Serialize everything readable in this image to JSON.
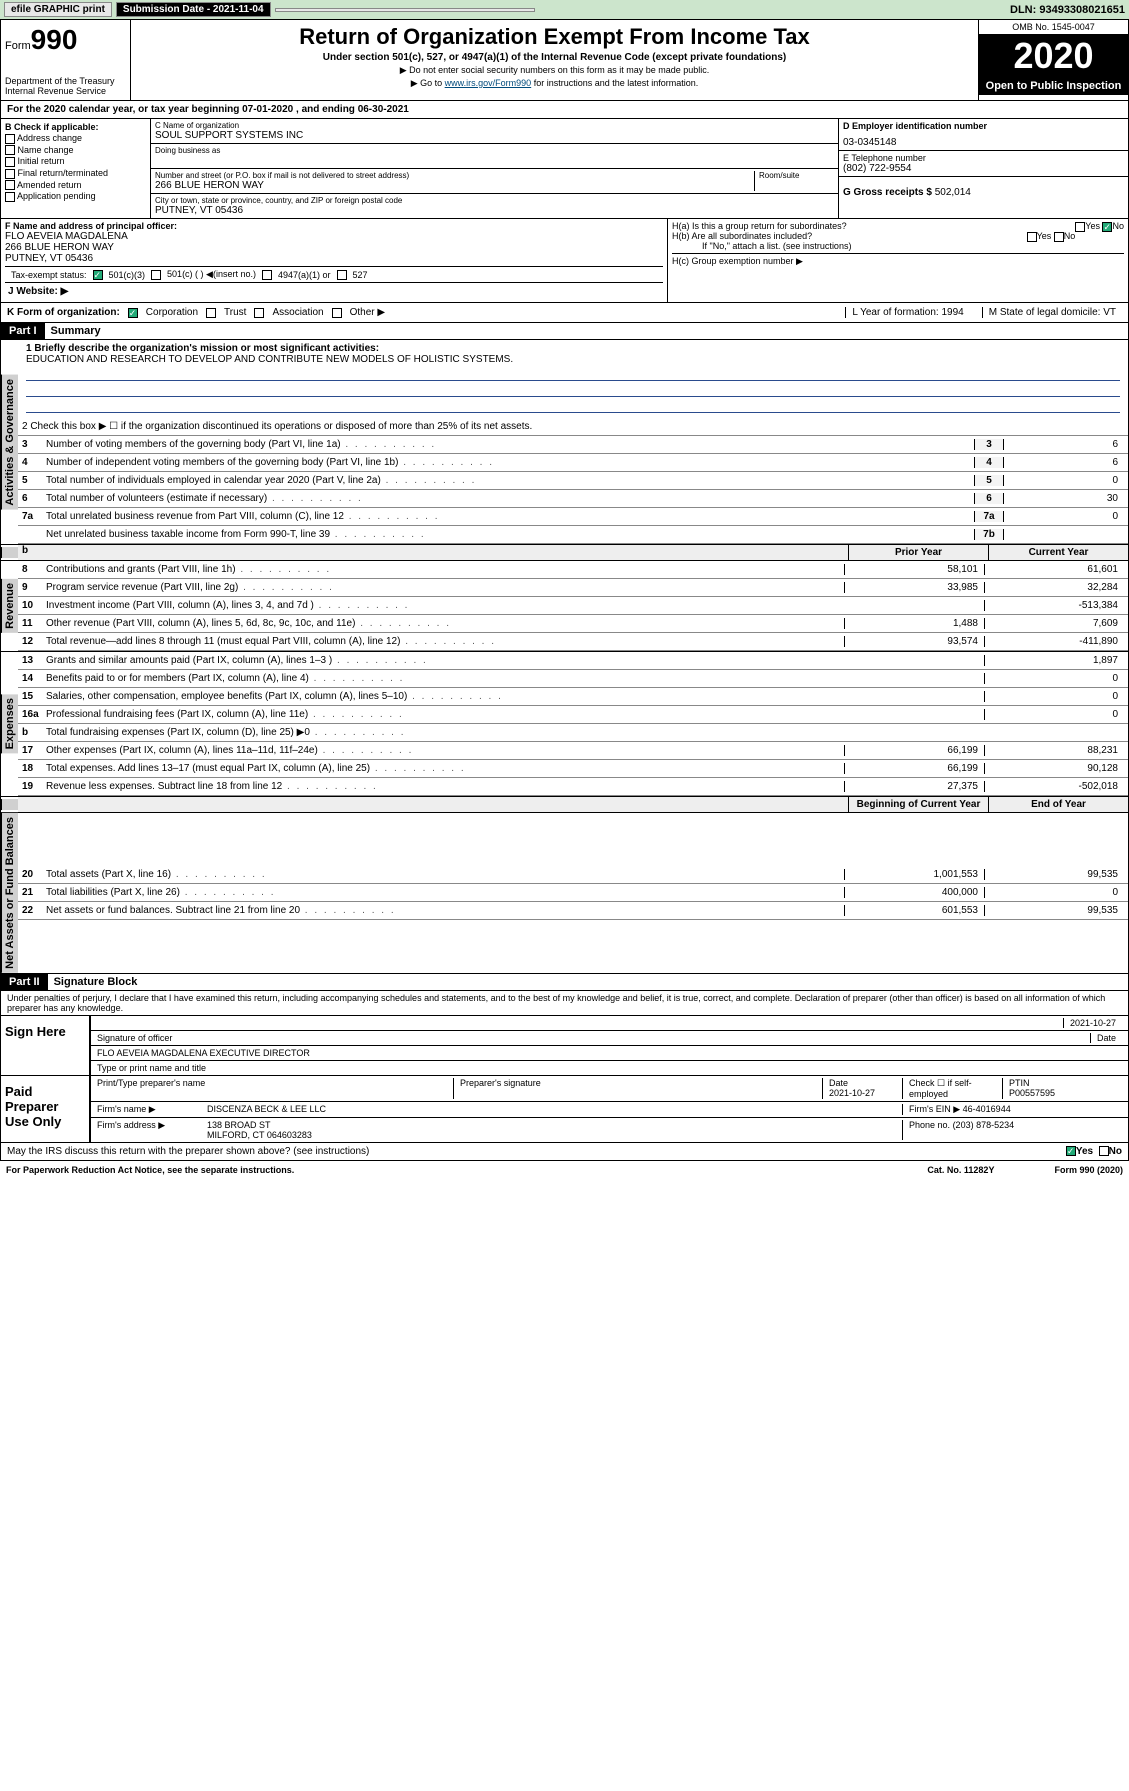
{
  "topbar": {
    "efile": "efile GRAPHIC print",
    "submission": "Submission Date - 2021-11-04",
    "dln": "DLN: 93493308021651"
  },
  "header": {
    "form_prefix": "Form",
    "form_number": "990",
    "dept": "Department of the Treasury\nInternal Revenue Service",
    "title": "Return of Organization Exempt From Income Tax",
    "subtitle": "Under section 501(c), 527, or 4947(a)(1) of the Internal Revenue Code (except private foundations)",
    "note1": "▶ Do not enter social security numbers on this form as it may be made public.",
    "note2_pre": "▶ Go to ",
    "note2_link": "www.irs.gov/Form990",
    "note2_post": " for instructions and the latest information.",
    "omb": "OMB No. 1545-0047",
    "year": "2020",
    "open": "Open to Public Inspection"
  },
  "period": "For the 2020 calendar year, or tax year beginning 07-01-2020   , and ending 06-30-2021",
  "boxB": {
    "label": "B Check if applicable:",
    "items": [
      "Address change",
      "Name change",
      "Initial return",
      "Final return/terminated",
      "Amended return",
      "Application pending"
    ]
  },
  "boxC": {
    "name_label": "C Name of organization",
    "name": "SOUL SUPPORT SYSTEMS INC",
    "dba_label": "Doing business as",
    "street_label": "Number and street (or P.O. box if mail is not delivered to street address)",
    "room_label": "Room/suite",
    "street": "266 BLUE HERON WAY",
    "city_label": "City or town, state or province, country, and ZIP or foreign postal code",
    "city": "PUTNEY, VT  05436"
  },
  "boxD": {
    "label": "D Employer identification number",
    "value": "03-0345148"
  },
  "boxE": {
    "label": "E Telephone number",
    "value": "(802) 722-9554"
  },
  "boxG": {
    "label": "G Gross receipts $",
    "value": "502,014"
  },
  "boxF": {
    "label": "F Name and address of principal officer:",
    "name": "FLO AEVEIA MAGDALENA",
    "street": "266 BLUE HERON WAY",
    "city": "PUTNEY, VT  05436"
  },
  "boxH": {
    "ha": "H(a)  Is this a group return for subordinates?",
    "hb": "H(b)  Are all subordinates included?",
    "hb_note": "If \"No,\" attach a list. (see instructions)",
    "hc": "H(c)  Group exemption number ▶"
  },
  "taxexempt": {
    "label": "Tax-exempt status:",
    "opt1": "501(c)(3)",
    "opt2": "501(c) (  ) ◀(insert no.)",
    "opt3": "4947(a)(1) or",
    "opt4": "527"
  },
  "boxJ": {
    "label": "J   Website: ▶"
  },
  "boxK": {
    "label": "K Form of organization:",
    "opts": [
      "Corporation",
      "Trust",
      "Association",
      "Other ▶"
    ],
    "L": "L Year of formation: 1994",
    "M": "M State of legal domicile: VT"
  },
  "part1": {
    "header": "Part I",
    "title": "Summary",
    "briefly_label": "1  Briefly describe the organization's mission or most significant activities:",
    "briefly": "EDUCATION AND RESEARCH TO DEVELOP AND CONTRIBUTE NEW MODELS OF HOLISTIC SYSTEMS.",
    "line2": "2   Check this box ▶ ☐  if the organization discontinued its operations or disposed of more than 25% of its net assets.",
    "governance": [
      {
        "n": "3",
        "d": "Number of voting members of the governing body (Part VI, line 1a)",
        "c": "3",
        "v": "6"
      },
      {
        "n": "4",
        "d": "Number of independent voting members of the governing body (Part VI, line 1b)",
        "c": "4",
        "v": "6"
      },
      {
        "n": "5",
        "d": "Total number of individuals employed in calendar year 2020 (Part V, line 2a)",
        "c": "5",
        "v": "0"
      },
      {
        "n": "6",
        "d": "Total number of volunteers (estimate if necessary)",
        "c": "6",
        "v": "30"
      },
      {
        "n": "7a",
        "d": "Total unrelated business revenue from Part VIII, column (C), line 12",
        "c": "7a",
        "v": "0"
      },
      {
        "n": "",
        "d": "Net unrelated business taxable income from Form 990-T, line 39",
        "c": "7b",
        "v": ""
      }
    ],
    "colheads": {
      "b": "b",
      "prior": "Prior Year",
      "current": "Current Year"
    },
    "revenue": [
      {
        "n": "8",
        "d": "Contributions and grants (Part VIII, line 1h)",
        "p": "58,101",
        "c": "61,601"
      },
      {
        "n": "9",
        "d": "Program service revenue (Part VIII, line 2g)",
        "p": "33,985",
        "c": "32,284"
      },
      {
        "n": "10",
        "d": "Investment income (Part VIII, column (A), lines 3, 4, and 7d )",
        "p": "",
        "c": "-513,384"
      },
      {
        "n": "11",
        "d": "Other revenue (Part VIII, column (A), lines 5, 6d, 8c, 9c, 10c, and 11e)",
        "p": "1,488",
        "c": "7,609"
      },
      {
        "n": "12",
        "d": "Total revenue—add lines 8 through 11 (must equal Part VIII, column (A), line 12)",
        "p": "93,574",
        "c": "-411,890"
      }
    ],
    "expenses": [
      {
        "n": "13",
        "d": "Grants and similar amounts paid (Part IX, column (A), lines 1–3 )",
        "p": "",
        "c": "1,897"
      },
      {
        "n": "14",
        "d": "Benefits paid to or for members (Part IX, column (A), line 4)",
        "p": "",
        "c": "0"
      },
      {
        "n": "15",
        "d": "Salaries, other compensation, employee benefits (Part IX, column (A), lines 5–10)",
        "p": "",
        "c": "0"
      },
      {
        "n": "16a",
        "d": "Professional fundraising fees (Part IX, column (A), line 11e)",
        "p": "",
        "c": "0"
      },
      {
        "n": "b",
        "d": "Total fundraising expenses (Part IX, column (D), line 25) ▶0",
        "p": "shade",
        "c": "shade"
      },
      {
        "n": "17",
        "d": "Other expenses (Part IX, column (A), lines 11a–11d, 11f–24e)",
        "p": "66,199",
        "c": "88,231"
      },
      {
        "n": "18",
        "d": "Total expenses. Add lines 13–17 (must equal Part IX, column (A), line 25)",
        "p": "66,199",
        "c": "90,128"
      },
      {
        "n": "19",
        "d": "Revenue less expenses. Subtract line 18 from line 12",
        "p": "27,375",
        "c": "-502,018"
      }
    ],
    "colheads2": {
      "begin": "Beginning of Current Year",
      "end": "End of Year"
    },
    "netassets": [
      {
        "n": "20",
        "d": "Total assets (Part X, line 16)",
        "p": "1,001,553",
        "c": "99,535"
      },
      {
        "n": "21",
        "d": "Total liabilities (Part X, line 26)",
        "p": "400,000",
        "c": "0"
      },
      {
        "n": "22",
        "d": "Net assets or fund balances. Subtract line 21 from line 20",
        "p": "601,553",
        "c": "99,535"
      }
    ],
    "sidebars": {
      "gov": "Activities & Governance",
      "rev": "Revenue",
      "exp": "Expenses",
      "net": "Net Assets or Fund Balances"
    }
  },
  "part2": {
    "header": "Part II",
    "title": "Signature Block",
    "declaration": "Under penalties of perjury, I declare that I have examined this return, including accompanying schedules and statements, and to the best of my knowledge and belief, it is true, correct, and complete. Declaration of preparer (other than officer) is based on all information of which preparer has any knowledge.",
    "sign_here": "Sign Here",
    "sig_officer": "Signature of officer",
    "date1": "2021-10-27",
    "date_label": "Date",
    "officer_name": "FLO AEVEIA MAGDALENA  EXECUTIVE DIRECTOR",
    "type_label": "Type or print name and title",
    "paid": "Paid Preparer Use Only",
    "prep_name_label": "Print/Type preparer's name",
    "prep_sig_label": "Preparer's signature",
    "prep_date": "2021-10-27",
    "check_self": "Check ☐ if self-employed",
    "ptin_label": "PTIN",
    "ptin": "P00557595",
    "firm_name_label": "Firm's name    ▶",
    "firm_name": "DISCENZA BECK & LEE LLC",
    "firm_ein_label": "Firm's EIN ▶",
    "firm_ein": "46-4016944",
    "firm_addr_label": "Firm's address ▶",
    "firm_addr": "138 BROAD ST",
    "firm_city": "MILFORD, CT  064603283",
    "phone_label": "Phone no.",
    "phone": "(203) 878-5234",
    "discuss": "May the IRS discuss this return with the preparer shown above? (see instructions)",
    "yes": "Yes",
    "no": "No"
  },
  "footer": {
    "left": "For Paperwork Reduction Act Notice, see the separate instructions.",
    "mid": "Cat. No. 11282Y",
    "right": "Form 990 (2020)"
  }
}
